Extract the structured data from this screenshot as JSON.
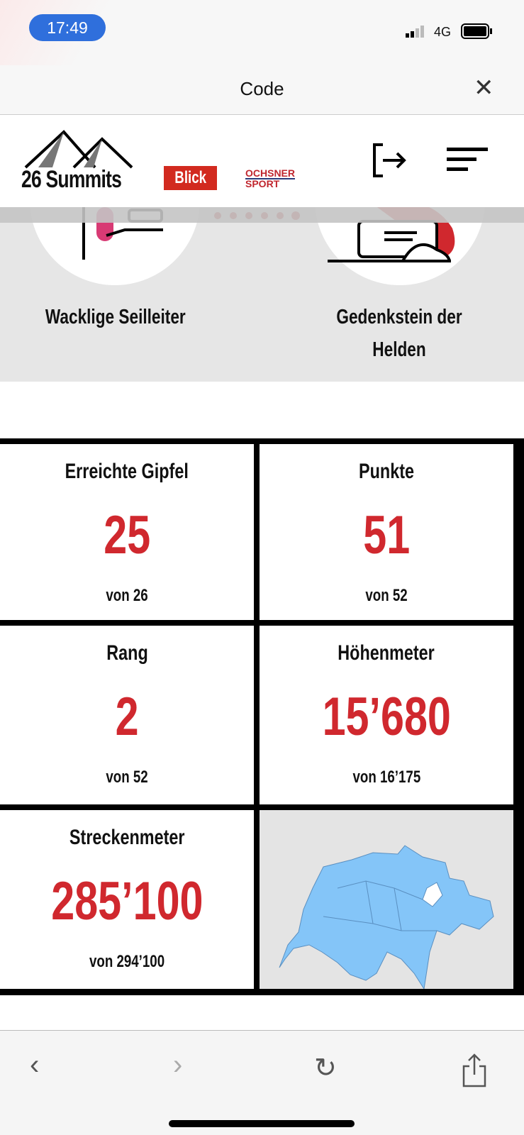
{
  "status": {
    "time": "17:49",
    "network": "4G"
  },
  "titlebar": {
    "title": "Code"
  },
  "header": {
    "logo": "26 Summits",
    "partner1": "Blick",
    "partner2_line1": "OCHSNER",
    "partner2_line2": "SPORT"
  },
  "stations": [
    {
      "label": "Wacklige Seilleiter"
    },
    {
      "label": "Gedenkstein der Helden"
    }
  ],
  "stats": [
    {
      "title": "Erreichte Gipfel",
      "value": "25",
      "sub": "von 26"
    },
    {
      "title": "Punkte",
      "value": "51",
      "sub": "von 52"
    },
    {
      "title": "Rang",
      "value": "2",
      "sub": "von 52"
    },
    {
      "title": "Höhenmeter",
      "value": "15’680",
      "sub": "von 16’175"
    },
    {
      "title": "Streckenmeter",
      "value": "285’100",
      "sub": "von 294’100"
    }
  ],
  "colors": {
    "accent": "#d0282e",
    "map": "#84c5f8"
  }
}
